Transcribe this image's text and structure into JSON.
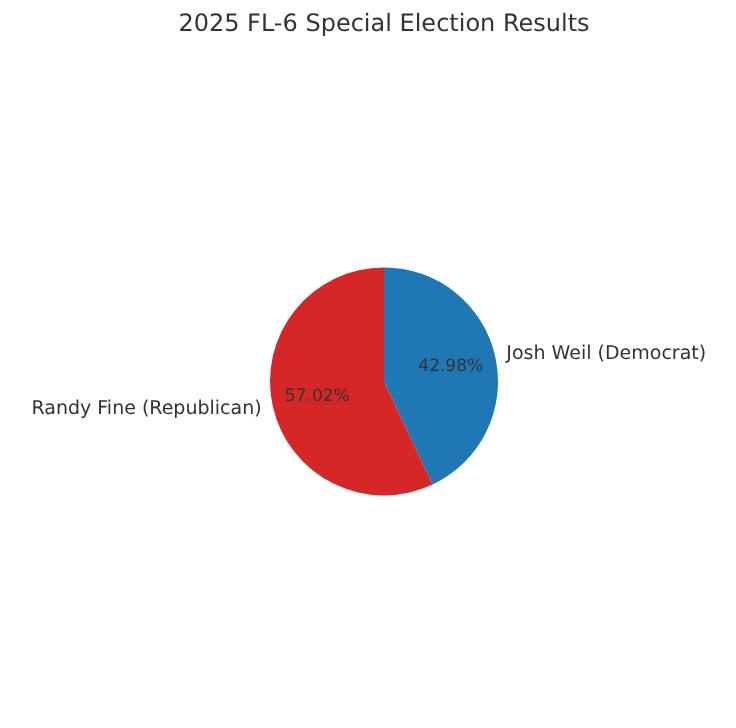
{
  "chart_data": {
    "type": "pie",
    "title": "2025 FL-6 Special Election Results",
    "categories": [
      "Josh Weil (Democrat)",
      "Randy Fine (Republican)"
    ],
    "values": [
      42.98,
      57.02
    ],
    "colors": [
      "#1f77b4",
      "#d62728"
    ],
    "value_labels": [
      "42.98%",
      "57.02%"
    ],
    "legend": false
  }
}
